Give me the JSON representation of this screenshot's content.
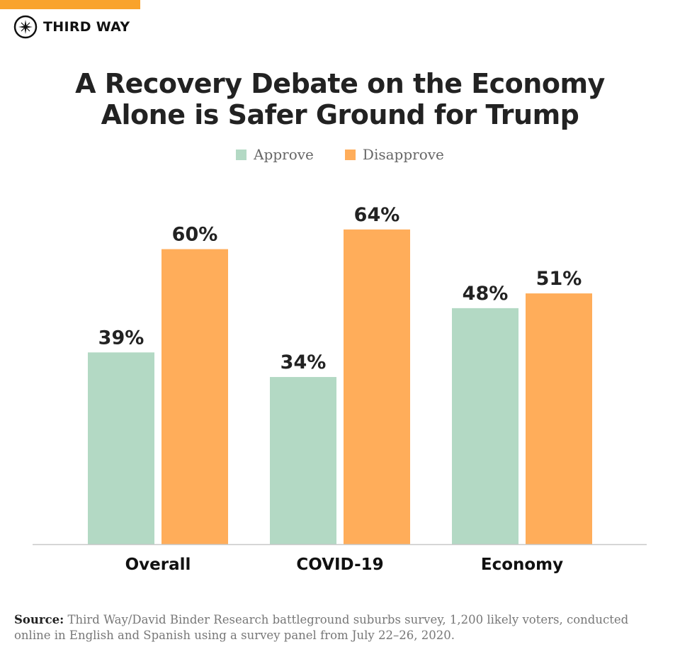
{
  "brand": {
    "name": "THIRD WAY",
    "accent": "#f9a32c"
  },
  "chart_data": {
    "type": "bar",
    "title": "A Recovery Debate on the Economy Alone is Safer Ground for Trump",
    "title_lines": [
      "A Recovery Debate on the Economy",
      "Alone is Safer Ground for Trump"
    ],
    "categories": [
      "Overall",
      "COVID-19",
      "Economy"
    ],
    "series": [
      {
        "name": "Approve",
        "values": [
          39,
          34,
          48
        ],
        "color": "#b3d9c4"
      },
      {
        "name": "Disapprove",
        "values": [
          60,
          64,
          51
        ],
        "color": "#ffad5a"
      }
    ],
    "value_suffix": "%",
    "ylim": [
      0,
      100
    ],
    "grid": false,
    "legend_position": "top"
  },
  "source": {
    "label": "Source:",
    "text": "Third Way/David Binder Research battleground suburbs survey, 1,200 likely voters, conducted online in English and Spanish using a survey panel from July 22–26, 2020."
  }
}
